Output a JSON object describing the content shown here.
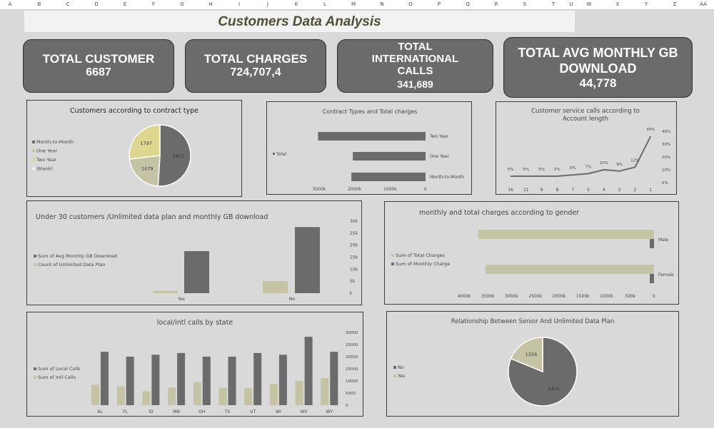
{
  "sheet": {
    "columns": [
      "A",
      "B",
      "C",
      "D",
      "E",
      "F",
      "G",
      "H",
      "I",
      "J",
      "K",
      "L",
      "M",
      "N",
      "O",
      "P",
      "Q",
      "R",
      "S",
      "T",
      "U",
      "W",
      "X",
      "Y",
      "Z",
      "AA"
    ]
  },
  "title": "Customers Data Analysis",
  "kpis": [
    {
      "label": "TOTAL CUSTOMER",
      "value": "6687"
    },
    {
      "label": "TOTAL CHARGES",
      "value": "724,707,4"
    },
    {
      "label": "TOTAL INTERNATIONAL CALLS",
      "value": "341,689"
    },
    {
      "label": "TOTAL AVG MONTHLY GB DOWNLOAD",
      "value": "44,778"
    }
  ],
  "colors": {
    "dark": "#6b6b6b",
    "olive": "#c4c4a4",
    "yellow": "#ddd68e",
    "border": "#3d3d3d",
    "bg": "#d9d9d9"
  },
  "chart_data": [
    {
      "type": "pie",
      "title": "Customers according to contract type",
      "legend": [
        "Month-to-Month",
        "One Year",
        "Two Year",
        "(blank)"
      ],
      "values": [
        3411,
        1479,
        1797,
        0
      ]
    },
    {
      "type": "bar",
      "orientation": "horizontal",
      "title": "Contract Types and Total charges",
      "categories": [
        "Two Year",
        "One Year",
        "Month-to-Month"
      ],
      "series": [
        {
          "name": "Total",
          "values": [
            3030,
            2050,
            2090
          ]
        }
      ],
      "unit": "k",
      "ticks": [
        "3000k",
        "2000k",
        "1000k",
        "k"
      ],
      "tick_values": [
        3000,
        2000,
        1000,
        0
      ],
      "xlim": [
        0,
        3000
      ]
    },
    {
      "type": "line",
      "title": "Customer service calls according to Account length",
      "title_lines": [
        "Customer service calls according to",
        "Account length"
      ],
      "categories": [
        "16",
        "11",
        "9",
        "8",
        "7",
        "5",
        "4",
        "3",
        "2",
        "1"
      ],
      "values": [
        5,
        5,
        5,
        5,
        6,
        7,
        10,
        9,
        12,
        36
      ],
      "data_labels": [
        "5%",
        "5%",
        "5%",
        "5%",
        "6%",
        "7%",
        "10%",
        "9%",
        "12%",
        "36%"
      ],
      "ticks": [
        "40%",
        "30%",
        "20%",
        "10%",
        "0%"
      ],
      "tick_values": [
        40,
        30,
        20,
        10,
        0
      ],
      "ylim": [
        0,
        40
      ]
    },
    {
      "type": "bar",
      "title": "Under 30 customers /Unlimited data plan and monthly GB download",
      "categories": [
        "Yes",
        "No"
      ],
      "series": [
        {
          "name": "Sum of Avg Monthly GB Download",
          "values": [
            17500,
            27500
          ]
        },
        {
          "name": "Count of Unlimited Data Plan",
          "values": [
            1000,
            5000
          ]
        }
      ],
      "ticks": [
        "30k",
        "25k",
        "20k",
        "15k",
        "10k",
        "5k",
        "k"
      ],
      "tick_values": [
        30000,
        25000,
        20000,
        15000,
        10000,
        5000,
        0
      ],
      "ylim": [
        0,
        30000
      ]
    },
    {
      "type": "bar",
      "orientation": "horizontal",
      "title": "monthly and total charges according to gender",
      "categories": [
        "Male",
        "Female"
      ],
      "series": [
        {
          "name": "Sum of Total Charges",
          "values": [
            3700,
            3550
          ]
        },
        {
          "name": "Sum of Monthly Charge",
          "values": [
            90,
            90
          ]
        }
      ],
      "unit": "k",
      "ticks": [
        "4000k",
        "3500k",
        "3000k",
        "2500k",
        "2000k",
        "1500k",
        "1000k",
        "500k",
        "k"
      ],
      "tick_values": [
        4000,
        3500,
        3000,
        2500,
        2000,
        1500,
        1000,
        500,
        0
      ],
      "xlim": [
        0,
        4000
      ]
    },
    {
      "type": "bar",
      "title": "local/intl calls by state",
      "categories": [
        "AL",
        "FL",
        "ID",
        "MN",
        "OH",
        "TX",
        "UT",
        "WI",
        "WV",
        "WY"
      ],
      "series": [
        {
          "name": "Sum of Local Calls",
          "values": [
            22000,
            20000,
            20800,
            21500,
            20000,
            20000,
            21500,
            20800,
            28200,
            22000
          ]
        },
        {
          "name": "Sum of Intl Calls",
          "values": [
            8500,
            7800,
            5800,
            7200,
            9500,
            7200,
            7000,
            8800,
            10000,
            11200
          ]
        }
      ],
      "ticks": [
        "30000",
        "25000",
        "20000",
        "15000",
        "10000",
        "5000",
        "0"
      ],
      "tick_values": [
        30000,
        25000,
        20000,
        15000,
        10000,
        5000,
        0
      ],
      "ylim": [
        0,
        30000
      ]
    },
    {
      "type": "pie",
      "title": "Relationship Between Senior And Unlimited Data Plan",
      "legend": [
        "No",
        "Yes"
      ],
      "values": [
        5431,
        1256
      ]
    }
  ]
}
